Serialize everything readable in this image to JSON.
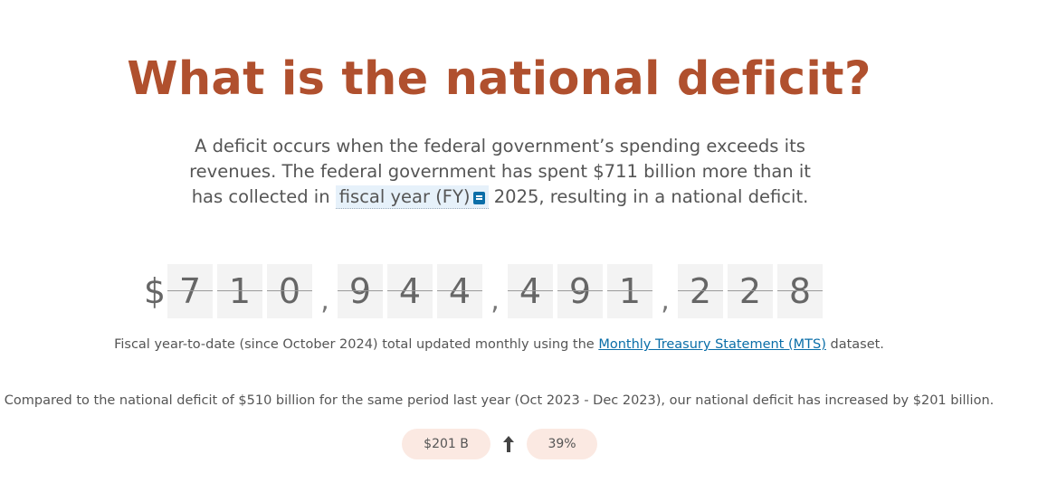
{
  "title": "What is the national deficit?",
  "description": {
    "part1": "A deficit occurs when the federal government’s spending exceeds its revenues. The federal government has spent $711 billion more than it has collected in",
    "glossary_term": "fiscal year (FY)",
    "part2": "2025, resulting in a national deficit."
  },
  "counter": {
    "currency": "$",
    "groups": [
      [
        "7",
        "1",
        "0"
      ],
      [
        "9",
        "4",
        "4"
      ],
      [
        "4",
        "9",
        "1"
      ],
      [
        "2",
        "2",
        "8"
      ]
    ],
    "separator": ","
  },
  "note": {
    "prefix": "Fiscal year-to-date (since October 2024) total updated monthly using the",
    "link_text": "Monthly Treasury Statement (MTS)",
    "suffix": "dataset."
  },
  "comparison": "Compared to the national deficit of $510 billion for the same period last year (Oct 2023 - Dec 2023), our national deficit has increased by $201 billion.",
  "change": {
    "amount": "$201 B",
    "direction": "up",
    "percent": "39%"
  },
  "colors": {
    "title": "#b0502e",
    "link": "#0a6ea8",
    "pill_bg": "#fbe9e2",
    "digit_bg": "#f3f3f3",
    "glossary_bg": "#e6f1fa"
  }
}
